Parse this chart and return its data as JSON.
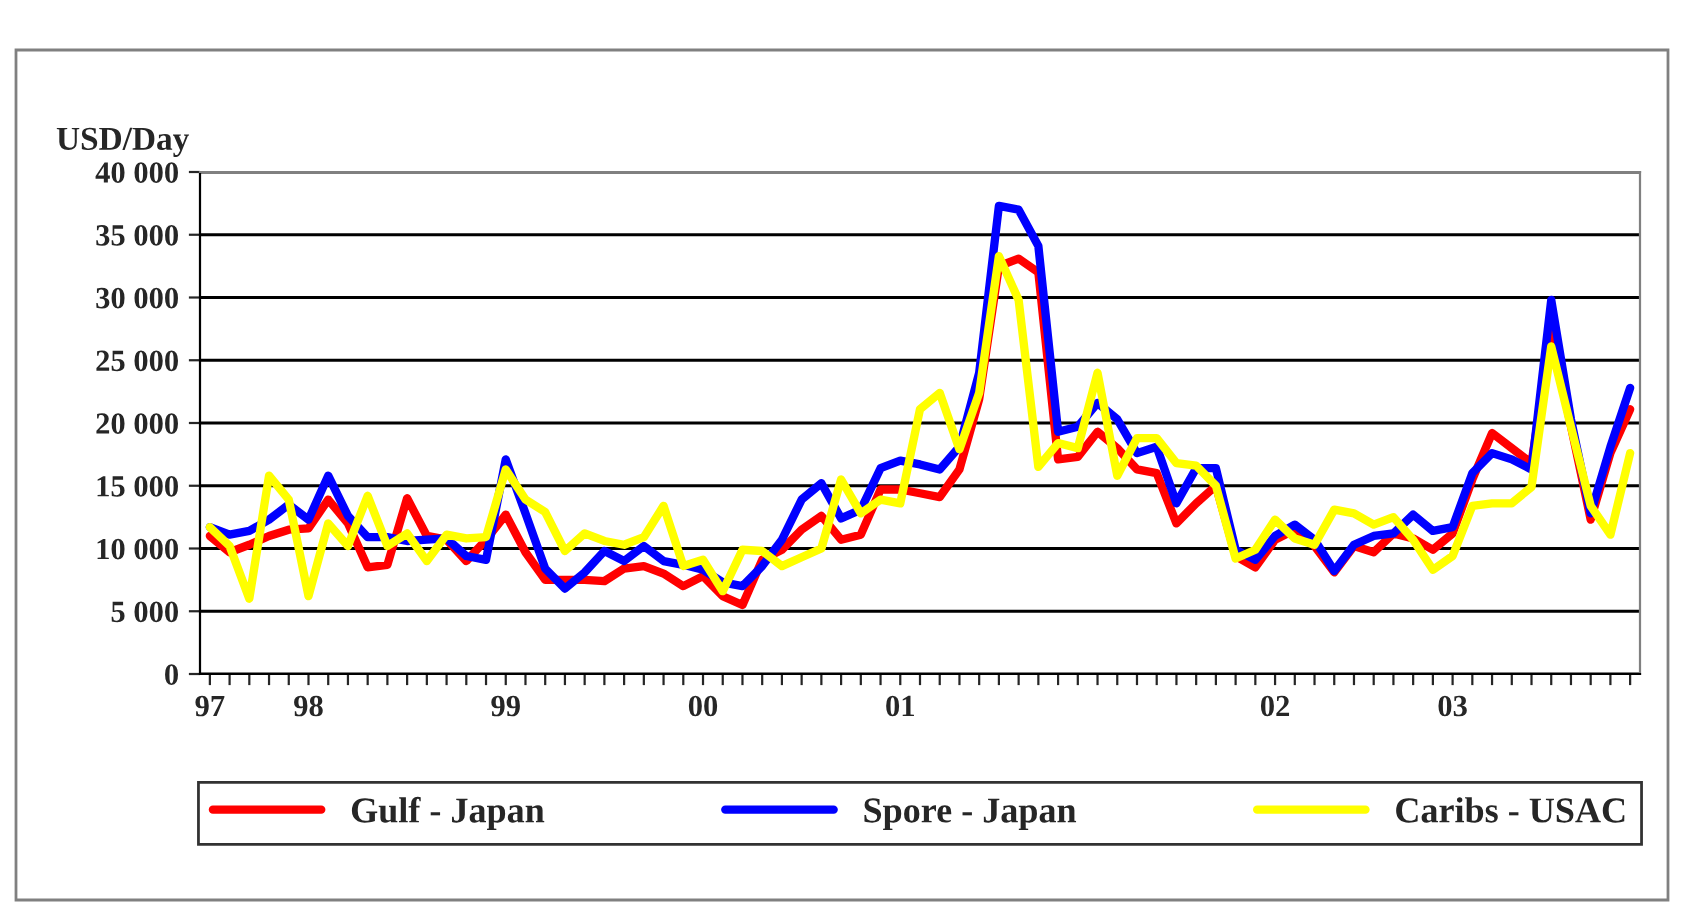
{
  "chart_data": {
    "type": "line",
    "ylabel": "USD/Day",
    "categories": [
      "97",
      null,
      null,
      null,
      null,
      "98",
      null,
      null,
      null,
      null,
      null,
      null,
      null,
      null,
      null,
      "99",
      null,
      null,
      null,
      null,
      null,
      null,
      null,
      null,
      null,
      "00",
      null,
      null,
      null,
      null,
      null,
      null,
      null,
      null,
      null,
      "01",
      null,
      null,
      null,
      null,
      null,
      null,
      null,
      null,
      null,
      null,
      null,
      null,
      null,
      null,
      null,
      null,
      null,
      null,
      "02",
      null,
      null,
      null,
      null,
      null,
      null,
      null,
      null,
      "03",
      null,
      null,
      null,
      null,
      null,
      null,
      null,
      null,
      null
    ],
    "series": [
      {
        "name": "Gulf - Japan",
        "color": "#ff0000",
        "values": [
          11000,
          9700,
          10300,
          11000,
          11500,
          11600,
          13900,
          12000,
          8500,
          8700,
          14000,
          11000,
          10700,
          9000,
          10700,
          12700,
          9700,
          7500,
          7500,
          7500,
          7400,
          8400,
          8600,
          8000,
          7000,
          7800,
          6200,
          5500,
          9100,
          9900,
          11500,
          12600,
          10700,
          11100,
          14700,
          14700,
          14400,
          14100,
          16300,
          21900,
          32500,
          33100,
          32000,
          17100,
          17300,
          19300,
          18000,
          16300,
          16000,
          12000,
          13600,
          15000,
          9400,
          8500,
          10700,
          11500,
          10200,
          8100,
          10200,
          9700,
          11200,
          10800,
          9900,
          11200,
          15500,
          19200,
          18000,
          16800,
          27200,
          null,
          12300,
          17600,
          21100
        ]
      },
      {
        "name": "Spore - Japan",
        "color": "#0000ff",
        "values": [
          11700,
          11100,
          11400,
          12300,
          13500,
          12300,
          15800,
          12600,
          10900,
          10900,
          10600,
          10700,
          10800,
          9400,
          9100,
          17100,
          12800,
          8400,
          6800,
          8100,
          9800,
          9000,
          10200,
          9000,
          8700,
          8300,
          7300,
          7000,
          8600,
          10700,
          13900,
          15200,
          12400,
          13100,
          16400,
          17000,
          16700,
          16300,
          18100,
          24000,
          37300,
          37000,
          34100,
          19300,
          19700,
          21600,
          20300,
          17600,
          18100,
          13600,
          16400,
          16400,
          9900,
          9100,
          11000,
          11900,
          10700,
          8200,
          10300,
          11000,
          11200,
          12700,
          11400,
          11700,
          16000,
          17600,
          17100,
          16300,
          29800,
          20300,
          12800,
          18100,
          22800
        ]
      },
      {
        "name": "Caribs - USAC",
        "color": "#ffff00",
        "values": [
          11700,
          10200,
          6000,
          15800,
          13900,
          6200,
          12000,
          10200,
          14200,
          10200,
          11200,
          9000,
          11100,
          10800,
          10900,
          16300,
          13900,
          12900,
          9800,
          11200,
          10600,
          10300,
          10900,
          13400,
          8600,
          9100,
          6600,
          9900,
          9800,
          8600,
          9300,
          10000,
          15500,
          12800,
          13900,
          13600,
          21100,
          22400,
          17900,
          22400,
          33300,
          29800,
          16500,
          18400,
          18000,
          24000,
          15800,
          18800,
          18800,
          16800,
          16600,
          15000,
          9200,
          9900,
          12300,
          10800,
          10300,
          13100,
          12800,
          11900,
          12500,
          10700,
          8300,
          9400,
          13400,
          13600,
          13600,
          14900,
          26100,
          19700,
          13400,
          11100,
          17600
        ]
      }
    ],
    "ylim": [
      0,
      40000
    ],
    "yticks": [
      {
        "value": 0,
        "label": "0"
      },
      {
        "value": 5000,
        "label": "5 000"
      },
      {
        "value": 10000,
        "label": "10 000"
      },
      {
        "value": 15000,
        "label": "15 000"
      },
      {
        "value": 20000,
        "label": "20 000"
      },
      {
        "value": 25000,
        "label": "25 000"
      },
      {
        "value": 30000,
        "label": "30 000"
      },
      {
        "value": 35000,
        "label": "35 000"
      },
      {
        "value": 40000,
        "label": "40 000"
      }
    ],
    "grid": "y",
    "legend": "bottom",
    "marker": "none",
    "line_style": "solid"
  }
}
